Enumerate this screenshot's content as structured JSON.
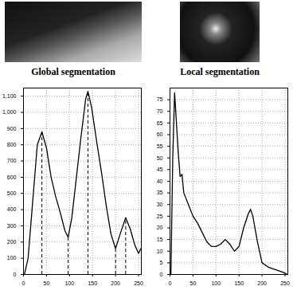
{
  "chart_data": [
    {
      "type": "line",
      "title": "Global segmentation",
      "color": "#000000",
      "grid": true,
      "x": [
        2,
        10,
        20,
        30,
        40,
        50,
        60,
        70,
        80,
        90,
        97,
        105,
        115,
        125,
        135,
        140,
        148,
        160,
        170,
        180,
        190,
        200,
        210,
        222,
        232,
        242,
        250,
        255
      ],
      "values": [
        0,
        100,
        450,
        800,
        880,
        780,
        600,
        480,
        380,
        270,
        230,
        350,
        600,
        850,
        1080,
        1130,
        1030,
        800,
        620,
        420,
        250,
        160,
        250,
        350,
        280,
        180,
        130,
        160
      ],
      "vlines": [
        {
          "x": 40,
          "y": 880
        },
        {
          "x": 97,
          "y": 230
        },
        {
          "x": 140,
          "y": 1130
        },
        {
          "x": 200,
          "y": 160
        },
        {
          "x": 222,
          "y": 350
        }
      ],
      "xlim": [
        0,
        256
      ],
      "xticks": [
        0,
        50,
        100,
        150,
        200,
        250
      ],
      "ylim": [
        0,
        1150
      ],
      "yticks": [
        0,
        100,
        200,
        300,
        400,
        500,
        600,
        700,
        800,
        900,
        1000,
        1100
      ]
    },
    {
      "type": "line",
      "title": "Local segmentation",
      "color": "#000000",
      "grid": true,
      "x": [
        2,
        6,
        10,
        14,
        18,
        22,
        26,
        30,
        40,
        50,
        60,
        70,
        80,
        90,
        100,
        110,
        120,
        130,
        140,
        150,
        160,
        170,
        175,
        180,
        190,
        200,
        215,
        230,
        245,
        255
      ],
      "values": [
        0,
        50,
        78,
        65,
        52,
        42,
        43,
        35,
        30,
        25,
        22,
        18,
        14,
        12,
        12,
        13,
        15,
        13,
        10,
        12,
        20,
        26,
        28,
        25,
        14,
        5,
        3,
        2,
        1,
        0
      ],
      "xlim": [
        0,
        256
      ],
      "xticks": [
        0,
        50,
        100,
        150,
        200,
        250
      ],
      "ylim": [
        0,
        80
      ],
      "yticks": [
        0,
        5,
        10,
        15,
        20,
        25,
        30,
        35,
        40,
        45,
        50,
        55,
        60,
        65,
        70,
        75
      ]
    }
  ]
}
